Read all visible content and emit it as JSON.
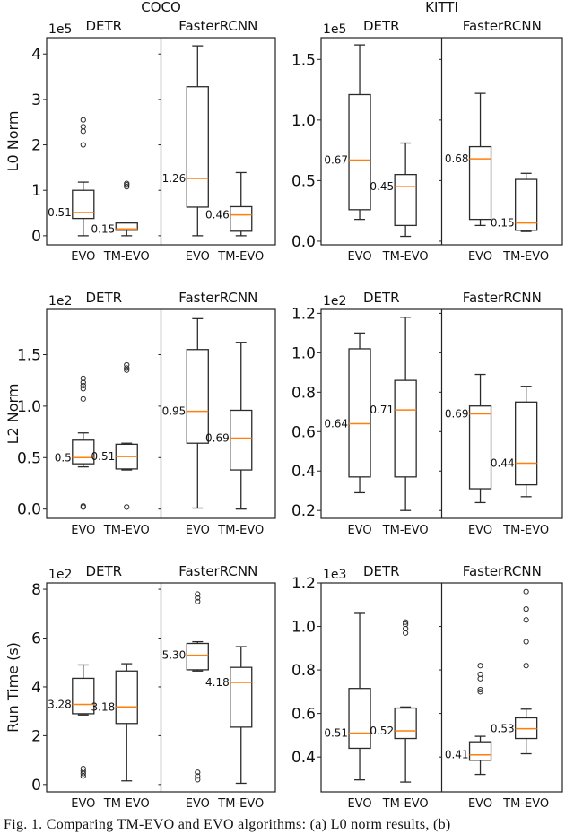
{
  "figure": {
    "column_titles": [
      "COCO",
      "KITTI"
    ],
    "caption": "Fig. 1.  Comparing TM-EVO and EVO algorithms: (a) L0 norm results, (b)"
  },
  "colors": {
    "box": "#2b2b2b",
    "median": "#ff7f0e",
    "axis": "#222222"
  },
  "chart_data": [
    {
      "type": "box",
      "dataset": "COCO",
      "ylabel": "L0 Norm",
      "multiplier": "1e5",
      "ylim": [
        -0.2,
        4.36
      ],
      "yticks": [
        0,
        1,
        2,
        3,
        4
      ],
      "yticklabels": [
        "0",
        "1",
        "2",
        "3",
        "4"
      ],
      "subplots": [
        {
          "title": "DETR",
          "categories": [
            "EVO",
            "TM-EVO"
          ],
          "boxes": [
            {
              "low": 0,
              "q1": 0.38,
              "median": 0.51,
              "q3": 1.0,
              "high": 1.18,
              "outliers": [
                2.0,
                2.3,
                2.4,
                2.55
              ],
              "label": "0.51"
            },
            {
              "low": 0,
              "q1": 0.12,
              "median": 0.15,
              "q3": 0.28,
              "high": 0.28,
              "outliers": [
                1.08,
                1.12,
                1.15
              ],
              "label": "0.15"
            }
          ]
        },
        {
          "title": "FasterRCNN",
          "categories": [
            "EVO",
            "TM-EVO"
          ],
          "boxes": [
            {
              "low": 0,
              "q1": 0.63,
              "median": 1.26,
              "q3": 3.28,
              "high": 4.18,
              "outliers": [],
              "label": "1.26"
            },
            {
              "low": 0,
              "q1": 0.1,
              "median": 0.46,
              "q3": 0.64,
              "high": 1.39,
              "outliers": [],
              "label": "0.46"
            }
          ]
        }
      ]
    },
    {
      "type": "box",
      "dataset": "KITTI",
      "ylabel": "",
      "multiplier": "1e5",
      "ylim": [
        -0.03,
        1.68
      ],
      "yticks": [
        0,
        0.5,
        1.0,
        1.5
      ],
      "yticklabels": [
        "0.0",
        "0.5",
        "1.0",
        "1.5"
      ],
      "subplots": [
        {
          "title": "DETR",
          "categories": [
            "EVO",
            "TM-EVO"
          ],
          "boxes": [
            {
              "low": 0.18,
              "q1": 0.26,
              "median": 0.67,
              "q3": 1.21,
              "high": 1.62,
              "outliers": [],
              "label": "0.67"
            },
            {
              "low": 0.04,
              "q1": 0.13,
              "median": 0.45,
              "q3": 0.55,
              "high": 0.81,
              "outliers": [],
              "label": "0.45"
            }
          ]
        },
        {
          "title": "FasterRCNN",
          "categories": [
            "EVO",
            "TM-EVO"
          ],
          "boxes": [
            {
              "low": 0.13,
              "q1": 0.18,
              "median": 0.68,
              "q3": 0.78,
              "high": 1.22,
              "outliers": [],
              "label": "0.68"
            },
            {
              "low": 0.08,
              "q1": 0.09,
              "median": 0.15,
              "q3": 0.51,
              "high": 0.56,
              "outliers": [],
              "label": "0.15"
            }
          ]
        }
      ]
    },
    {
      "type": "box",
      "dataset": "COCO",
      "ylabel": "L2 Norm",
      "multiplier": "1e2",
      "ylim": [
        -0.09,
        1.94
      ],
      "yticks": [
        0,
        0.5,
        1.0,
        1.5
      ],
      "yticklabels": [
        "0.0",
        "0.5",
        "1.0",
        "1.5"
      ],
      "subplots": [
        {
          "title": "DETR",
          "categories": [
            "EVO",
            "TM-EVO"
          ],
          "boxes": [
            {
              "low": 0.41,
              "q1": 0.44,
              "median": 0.5,
              "q3": 0.67,
              "high": 0.74,
              "outliers": [
                0.02,
                0.03,
                1.07,
                1.17,
                1.2,
                1.23,
                1.27
              ],
              "label": "0.5"
            },
            {
              "low": 0.38,
              "q1": 0.39,
              "median": 0.51,
              "q3": 0.63,
              "high": 0.64,
              "outliers": [
                0.02,
                1.35,
                1.37,
                1.4
              ],
              "label": "0.51"
            }
          ]
        },
        {
          "title": "FasterRCNN",
          "categories": [
            "EVO",
            "TM-EVO"
          ],
          "boxes": [
            {
              "low": 0.01,
              "q1": 0.64,
              "median": 0.95,
              "q3": 1.55,
              "high": 1.85,
              "outliers": [],
              "label": "0.95"
            },
            {
              "low": 0.0,
              "q1": 0.38,
              "median": 0.69,
              "q3": 0.96,
              "high": 1.62,
              "outliers": [],
              "label": "0.69"
            }
          ]
        }
      ]
    },
    {
      "type": "box",
      "dataset": "KITTI",
      "ylabel": "",
      "multiplier": "1e2",
      "ylim": [
        0.16,
        1.22
      ],
      "yticks": [
        0.2,
        0.4,
        0.6,
        0.8,
        1.0,
        1.2
      ],
      "yticklabels": [
        "0.2",
        "0.4",
        "0.6",
        "0.8",
        "1.0",
        "1.2"
      ],
      "subplots": [
        {
          "title": "DETR",
          "categories": [
            "EVO",
            "TM-EVO"
          ],
          "boxes": [
            {
              "low": 0.29,
              "q1": 0.37,
              "median": 0.64,
              "q3": 1.02,
              "high": 1.1,
              "outliers": [],
              "label": "0.64"
            },
            {
              "low": 0.2,
              "q1": 0.37,
              "median": 0.71,
              "q3": 0.86,
              "high": 1.18,
              "outliers": [],
              "label": "0.71"
            }
          ]
        },
        {
          "title": "FasterRCNN",
          "categories": [
            "EVO",
            "TM-EVO"
          ],
          "boxes": [
            {
              "low": 0.24,
              "q1": 0.31,
              "median": 0.69,
              "q3": 0.73,
              "high": 0.89,
              "outliers": [],
              "label": "0.69"
            },
            {
              "low": 0.27,
              "q1": 0.33,
              "median": 0.44,
              "q3": 0.75,
              "high": 0.83,
              "outliers": [],
              "label": "0.44"
            }
          ]
        }
      ]
    },
    {
      "type": "box",
      "dataset": "COCO",
      "ylabel": "Run Time (s)",
      "multiplier": "1e2",
      "ylim": [
        -0.3,
        8.26
      ],
      "yticks": [
        0,
        2,
        4,
        6,
        8
      ],
      "yticklabels": [
        "0",
        "2",
        "4",
        "6",
        "8"
      ],
      "subplots": [
        {
          "title": "DETR",
          "categories": [
            "EVO",
            "TM-EVO"
          ],
          "boxes": [
            {
              "low": 2.85,
              "q1": 2.9,
              "median": 3.28,
              "q3": 4.35,
              "high": 4.9,
              "outliers": [
                0.35,
                0.45,
                0.55,
                0.65
              ],
              "label": "3.28"
            },
            {
              "low": 0.15,
              "q1": 2.5,
              "median": 3.18,
              "q3": 4.65,
              "high": 4.95,
              "outliers": [],
              "label": "3.18"
            }
          ]
        },
        {
          "title": "FasterRCNN",
          "categories": [
            "EVO",
            "TM-EVO"
          ],
          "boxes": [
            {
              "low": 4.65,
              "q1": 4.7,
              "median": 5.3,
              "q3": 5.78,
              "high": 5.85,
              "outliers": [
                0.2,
                0.35,
                0.5,
                7.5,
                7.65,
                7.8
              ],
              "label": "5.30"
            },
            {
              "low": 0.05,
              "q1": 2.35,
              "median": 4.18,
              "q3": 4.8,
              "high": 5.65,
              "outliers": [],
              "label": "4.18"
            }
          ]
        }
      ]
    },
    {
      "type": "box",
      "dataset": "KITTI",
      "ylabel": "",
      "multiplier": "1e3",
      "ylim": [
        0.24,
        1.2
      ],
      "yticks": [
        0.4,
        0.6,
        0.8,
        1.0,
        1.2
      ],
      "yticklabels": [
        "0.4",
        "0.6",
        "0.8",
        "1.0",
        "1.2"
      ],
      "subplots": [
        {
          "title": "DETR",
          "categories": [
            "EVO",
            "TM-EVO"
          ],
          "boxes": [
            {
              "low": 0.295,
              "q1": 0.44,
              "median": 0.51,
              "q3": 0.715,
              "high": 1.06,
              "outliers": [],
              "label": "0.51"
            },
            {
              "low": 0.285,
              "q1": 0.485,
              "median": 0.52,
              "q3": 0.625,
              "high": 0.63,
              "outliers": [
                0.97,
                0.99,
                1.01,
                1.02
              ],
              "label": "0.52"
            }
          ]
        },
        {
          "title": "FasterRCNN",
          "categories": [
            "EVO",
            "TM-EVO"
          ],
          "boxes": [
            {
              "low": 0.32,
              "q1": 0.385,
              "median": 0.41,
              "q3": 0.47,
              "high": 0.495,
              "outliers": [
                0.7,
                0.71,
                0.76,
                0.78,
                0.82
              ],
              "label": "0.41"
            },
            {
              "low": 0.415,
              "q1": 0.485,
              "median": 0.53,
              "q3": 0.58,
              "high": 0.62,
              "outliers": [
                0.82,
                0.93,
                1.03,
                1.08,
                1.16
              ],
              "label": "0.53"
            }
          ]
        }
      ]
    }
  ]
}
